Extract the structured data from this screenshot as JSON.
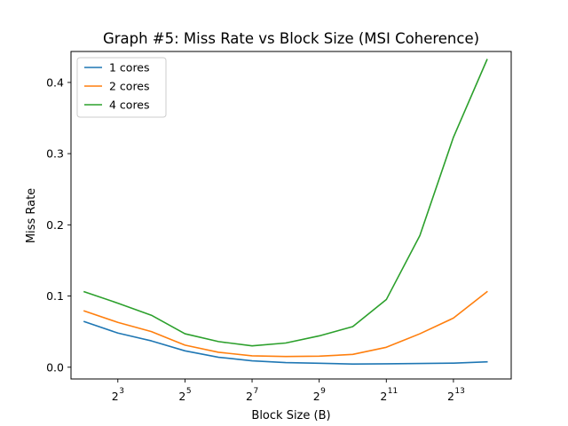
{
  "chart_data": {
    "type": "line",
    "title": "Graph #5: Miss Rate vs Block Size (MSI Coherence)",
    "xlabel": "Block Size (B)",
    "ylabel": "Miss Rate",
    "x_scale": "log2",
    "x": [
      4,
      8,
      16,
      32,
      64,
      128,
      256,
      512,
      1024,
      2048,
      4096,
      8192,
      16384
    ],
    "xlim": [
      3.04,
      27009
    ],
    "ylim": [
      -0.0165,
      0.4435
    ],
    "x_ticks": [
      {
        "value": 8,
        "base": "2",
        "exp": "3"
      },
      {
        "value": 32,
        "base": "2",
        "exp": "5"
      },
      {
        "value": 128,
        "base": "2",
        "exp": "7"
      },
      {
        "value": 512,
        "base": "2",
        "exp": "9"
      },
      {
        "value": 2048,
        "base": "2",
        "exp": "11"
      },
      {
        "value": 8192,
        "base": "2",
        "exp": "13"
      }
    ],
    "y_ticks": [
      {
        "value": 0.0,
        "label": "0.0"
      },
      {
        "value": 0.1,
        "label": "0.1"
      },
      {
        "value": 0.2,
        "label": "0.2"
      },
      {
        "value": 0.3,
        "label": "0.3"
      },
      {
        "value": 0.4,
        "label": "0.4"
      }
    ],
    "grid": false,
    "legend_position": "top-left",
    "series": [
      {
        "name": "1 cores",
        "color": "#1f77b4",
        "values": [
          0.064,
          0.048,
          0.037,
          0.023,
          0.014,
          0.009,
          0.0065,
          0.0055,
          0.0045,
          0.0048,
          0.0052,
          0.0057,
          0.0075
        ]
      },
      {
        "name": "2 cores",
        "color": "#ff7f0e",
        "values": [
          0.079,
          0.063,
          0.05,
          0.031,
          0.021,
          0.016,
          0.015,
          0.0155,
          0.018,
          0.028,
          0.047,
          0.069,
          0.106
        ]
      },
      {
        "name": "4 cores",
        "color": "#2ca02c",
        "values": [
          0.106,
          0.09,
          0.073,
          0.047,
          0.036,
          0.03,
          0.034,
          0.044,
          0.057,
          0.095,
          0.185,
          0.323,
          0.432
        ]
      }
    ]
  }
}
